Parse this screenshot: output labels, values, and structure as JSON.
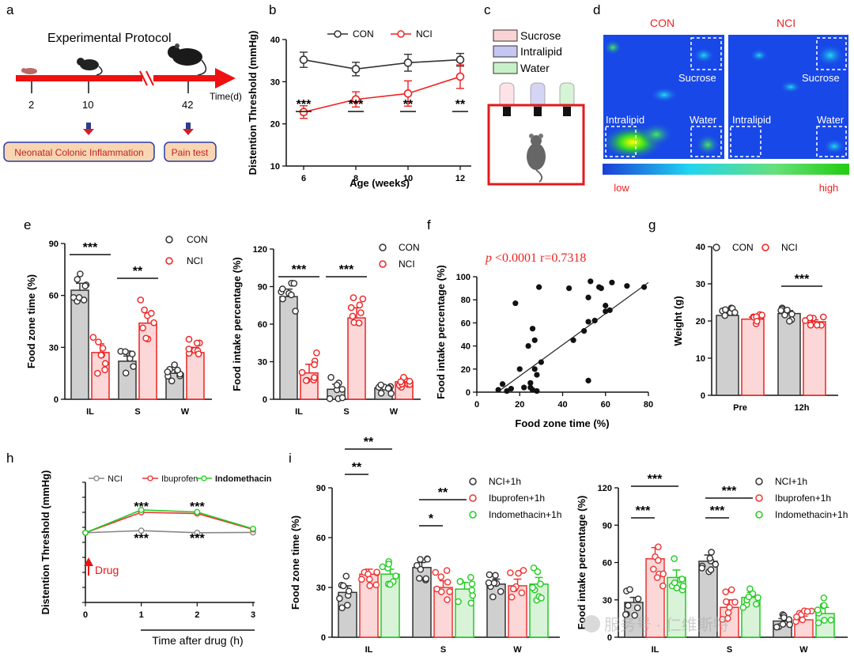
{
  "colors": {
    "con": "#333333",
    "nci": "#ee2222",
    "ibu": "#ee3333",
    "ind": "#22cc22",
    "grey_bar": "#cfcfcf",
    "pink_bar": "#fbd7d7",
    "green_bar": "#d9f3d9",
    "red": "#ee2222"
  },
  "panel_labels": {
    "a": "a",
    "b": "b",
    "c": "c",
    "d": "d",
    "e": "e",
    "f": "f",
    "g": "g",
    "h": "h",
    "i": "i"
  },
  "panel_a": {
    "title": "Experimental Protocol",
    "axis_label": "Time(d)",
    "ticks": [
      "2",
      "10",
      "42"
    ],
    "box1": "Neonatal Colonic Inflammation",
    "box2": "Pain test"
  },
  "panel_c": {
    "legend": [
      "Sucrose",
      "Intralipid",
      "Water"
    ]
  },
  "panel_d": {
    "con_title": "CON",
    "nci_title": "NCI",
    "con_labels": {
      "sucrose": "Sucrose",
      "intralipid": "Intralipid",
      "water": "Water"
    },
    "nci_labels": {
      "sucrose": "Sucrose",
      "intralipid": "Intralipid",
      "water": "Water"
    },
    "low": "low",
    "high": "high"
  },
  "panel_f_stats": {
    "p": "p",
    "rest": " <0.0001  r=0.7318"
  },
  "chart_data": [
    {
      "id": "b",
      "type": "line",
      "x": [
        6,
        8,
        10,
        12
      ],
      "series": [
        {
          "name": "CON",
          "values": [
            35.2,
            33.0,
            34.5,
            35.2
          ],
          "err": [
            1.8,
            1.6,
            2.0,
            1.5
          ]
        },
        {
          "name": "NCI",
          "values": [
            22.8,
            25.8,
            27.2,
            31.2
          ],
          "err": [
            1.5,
            1.8,
            3.0,
            2.8
          ]
        }
      ],
      "xlabel": "Age (weeks)",
      "ylabel": "Distention Threshold (mmHg)",
      "ylim": [
        10,
        40
      ],
      "yticks": [
        10,
        20,
        30,
        40
      ],
      "sig": [
        "***",
        "***",
        "**",
        "**"
      ],
      "legend": "top"
    },
    {
      "id": "e1",
      "type": "bar",
      "categories": [
        "IL",
        "S",
        "W"
      ],
      "series": [
        {
          "name": "CON",
          "values": [
            63,
            22,
            15
          ],
          "err": [
            4,
            3,
            2
          ]
        },
        {
          "name": "NCI",
          "values": [
            27,
            44,
            27
          ],
          "err": [
            5,
            6,
            3
          ]
        }
      ],
      "ylabel": "Food zone time (%)",
      "ylim": [
        0,
        90
      ],
      "yticks": [
        0,
        30,
        60,
        90
      ],
      "sig": [
        "***",
        "**",
        ""
      ],
      "legend": "top-right"
    },
    {
      "id": "e2",
      "type": "bar",
      "categories": [
        "IL",
        "S",
        "W"
      ],
      "series": [
        {
          "name": "CON",
          "values": [
            82,
            8,
            9
          ],
          "err": [
            6,
            4,
            2
          ]
        },
        {
          "name": "NCI",
          "values": [
            21,
            65,
            14
          ],
          "err": [
            7,
            8,
            3
          ]
        }
      ],
      "ylabel": "Food intake percentage (%)",
      "ylim": [
        0,
        120
      ],
      "yticks": [
        0,
        30,
        60,
        90,
        120
      ],
      "sig": [
        "***",
        "***",
        ""
      ],
      "legend": "top-right"
    },
    {
      "id": "f",
      "type": "scatter",
      "xlabel": "Food zone time (%)",
      "ylabel": "Food intake percentage (%)",
      "xlim": [
        0,
        80
      ],
      "ylim": [
        0,
        100
      ],
      "xticks": [
        0,
        20,
        40,
        60,
        80
      ],
      "yticks": [
        0,
        20,
        40,
        60,
        80,
        100
      ],
      "points": [
        [
          10,
          2
        ],
        [
          12,
          7
        ],
        [
          14,
          1
        ],
        [
          16,
          3
        ],
        [
          18,
          77
        ],
        [
          20,
          20
        ],
        [
          22,
          4
        ],
        [
          24,
          40
        ],
        [
          25,
          8
        ],
        [
          25,
          4
        ],
        [
          26,
          55
        ],
        [
          26,
          2
        ],
        [
          27,
          45
        ],
        [
          27,
          20
        ],
        [
          28,
          15
        ],
        [
          28,
          1
        ],
        [
          29,
          91
        ],
        [
          30,
          26
        ],
        [
          43,
          90
        ],
        [
          45,
          45
        ],
        [
          50,
          53
        ],
        [
          52,
          82
        ],
        [
          52,
          61
        ],
        [
          52,
          10
        ],
        [
          53,
          96
        ],
        [
          55,
          62
        ],
        [
          57,
          91
        ],
        [
          58,
          90
        ],
        [
          60,
          75
        ],
        [
          60,
          70
        ],
        [
          62,
          71
        ],
        [
          63,
          95
        ],
        [
          70,
          92
        ],
        [
          78,
          91
        ]
      ],
      "fit": {
        "slope": 1.35,
        "intercept": -13
      }
    },
    {
      "id": "g",
      "type": "bar",
      "categories": [
        "Pre",
        "12h"
      ],
      "series": [
        {
          "name": "CON",
          "values": [
            21.5,
            22.0
          ],
          "err": [
            0.8,
            0.8
          ]
        },
        {
          "name": "NCI",
          "values": [
            20.5,
            19.8
          ],
          "err": [
            0.5,
            0.5
          ]
        }
      ],
      "ylabel": "Weight (g)",
      "ylim": [
        0,
        40
      ],
      "yticks": [
        0,
        10,
        20,
        30,
        40
      ],
      "sig": [
        "",
        "***"
      ],
      "legend": "top"
    },
    {
      "id": "h",
      "type": "line",
      "x": [
        0,
        1,
        2,
        3
      ],
      "series": [
        {
          "name": "NCI",
          "values": [
            23.2,
            23.9,
            23.2,
            23.3
          ]
        },
        {
          "name": "Ibuprofen",
          "values": [
            23.2,
            30.0,
            29.6,
            24.3
          ]
        },
        {
          "name": "Indomethacin",
          "values": [
            23.2,
            30.8,
            30.1,
            24.5
          ]
        }
      ],
      "xlabel": "Time after drug (h)",
      "ylabel": "Distention Threshold (mmHg)",
      "ylim": [
        0,
        40
      ],
      "yticks": [
        0,
        5,
        10,
        15,
        20,
        25,
        30,
        35,
        40
      ],
      "sig_upper": [
        "***",
        "***"
      ],
      "sig_lower": [
        "***",
        "***"
      ],
      "annotation": "Drug",
      "legend": "top"
    },
    {
      "id": "i1",
      "type": "bar",
      "categories": [
        "IL",
        "S",
        "W"
      ],
      "series": [
        {
          "name": "NCI+1h",
          "values": [
            27,
            42,
            32
          ],
          "err": [
            4,
            3,
            3
          ]
        },
        {
          "name": "Ibuprofen+1h",
          "values": [
            38,
            30,
            31
          ],
          "err": [
            3,
            4,
            4
          ]
        },
        {
          "name": "Indomethacin+1h",
          "values": [
            38,
            29,
            32
          ],
          "err": [
            3,
            4,
            4
          ]
        }
      ],
      "ylabel": "Food zone time (%)",
      "ylim": [
        0,
        90
      ],
      "yticks": [
        0,
        30,
        60,
        90
      ],
      "sig_upper": [
        "**",
        "**"
      ],
      "sig_lower": [
        "**",
        "*"
      ],
      "legend": "top-right"
    },
    {
      "id": "i2",
      "type": "bar",
      "categories": [
        "IL",
        "S",
        "W"
      ],
      "series": [
        {
          "name": "NCI+1h",
          "values": [
            28,
            61,
            13
          ],
          "err": [
            4,
            5,
            2
          ]
        },
        {
          "name": "Ibuprofen+1h",
          "values": [
            63,
            24,
            14
          ],
          "err": [
            9,
            6,
            3
          ]
        },
        {
          "name": "Indomethacin+1h",
          "values": [
            48,
            32,
            19
          ],
          "err": [
            6,
            4,
            5
          ]
        }
      ],
      "ylabel": "Food intake percentage (%)",
      "ylim": [
        0,
        120
      ],
      "yticks": [
        0,
        30,
        60,
        90,
        120
      ],
      "sig_upper": [
        "***",
        "***"
      ],
      "sig_lower": [
        "***",
        "***"
      ],
      "legend": "top-right"
    }
  ],
  "watermark": "服务号 · 仁维斯特"
}
